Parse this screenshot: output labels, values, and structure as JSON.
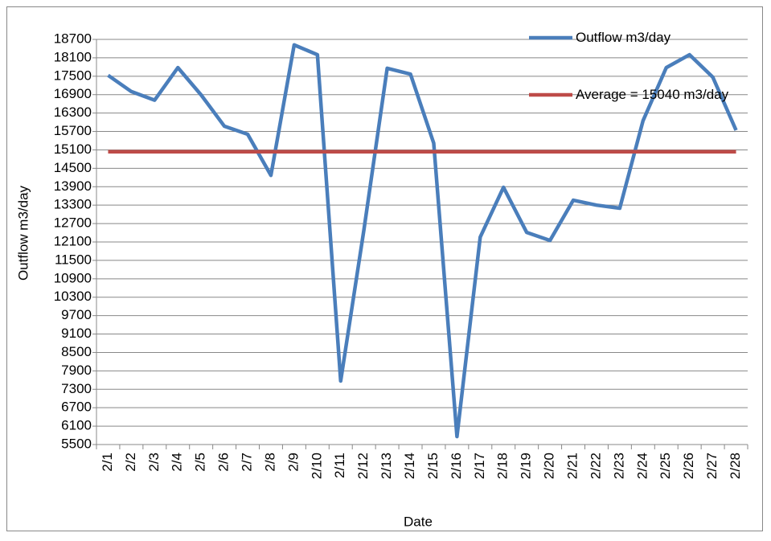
{
  "chart_data": {
    "type": "line",
    "x_label": "Date",
    "y_label": "Outflow m3/day",
    "categories": [
      "2/1",
      "2/2",
      "2/3",
      "2/4",
      "2/5",
      "2/6",
      "2/7",
      "2/8",
      "2/9",
      "2/10",
      "2/11",
      "2/12",
      "2/13",
      "2/14",
      "2/15",
      "2/16",
      "2/17",
      "2/18",
      "2/19",
      "2/20",
      "2/21",
      "2/22",
      "2/23",
      "2/24",
      "2/25",
      "2/26",
      "2/27",
      "2/28"
    ],
    "series": [
      {
        "name": "Outflow m3/day",
        "color": "#4a7ebb",
        "values": [
          17530,
          17000,
          16720,
          17780,
          16890,
          15870,
          15610,
          14270,
          18520,
          18200,
          7570,
          12500,
          17760,
          17570,
          15320,
          5760,
          12260,
          13880,
          12410,
          12150,
          13460,
          13300,
          13200,
          16050,
          17780,
          18200,
          17470,
          15740
        ]
      },
      {
        "name": "Average = 15040 m3/day",
        "color": "#be4b48",
        "values": [
          15040,
          15040,
          15040,
          15040,
          15040,
          15040,
          15040,
          15040,
          15040,
          15040,
          15040,
          15040,
          15040,
          15040,
          15040,
          15040,
          15040,
          15040,
          15040,
          15040,
          15040,
          15040,
          15040,
          15040,
          15040,
          15040,
          15040,
          15040
        ]
      }
    ],
    "ylim": [
      5500,
      18700
    ],
    "yticks": [
      5500,
      6100,
      6700,
      7300,
      7900,
      8500,
      9100,
      9700,
      10300,
      10900,
      11500,
      12100,
      12700,
      13300,
      13900,
      14500,
      15100,
      15700,
      16300,
      16900,
      17500,
      18100,
      18700
    ],
    "grid": true
  }
}
